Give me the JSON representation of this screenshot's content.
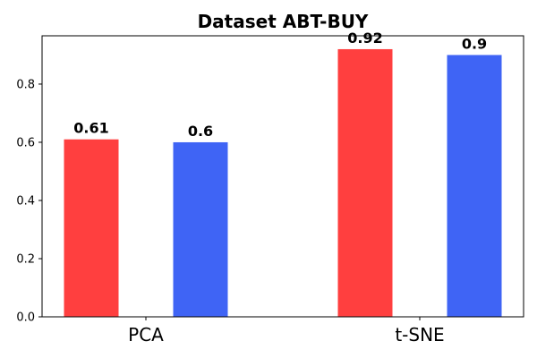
{
  "chart_data": {
    "type": "bar",
    "title": "Dataset ABT-BUY",
    "xlabel": "",
    "ylabel": "",
    "categories": [
      "PCA",
      "t-SNE"
    ],
    "series": [
      {
        "values": [
          0.61,
          0.92
        ],
        "labels": [
          "0.61",
          "0.92"
        ],
        "color": "#ff3f3f"
      },
      {
        "values": [
          0.6,
          0.9
        ],
        "labels": [
          "0.6",
          "0.9"
        ],
        "color": "#3f64f5"
      }
    ],
    "ylim": [
      0,
      0.966
    ],
    "yticks": [
      {
        "value": 0.0,
        "label": "0.0"
      },
      {
        "value": 0.2,
        "label": "0.2"
      },
      {
        "value": 0.4,
        "label": "0.4"
      },
      {
        "value": 0.6,
        "label": "0.6"
      },
      {
        "value": 0.8,
        "label": "0.8"
      }
    ],
    "grid": false,
    "legend": "none"
  }
}
